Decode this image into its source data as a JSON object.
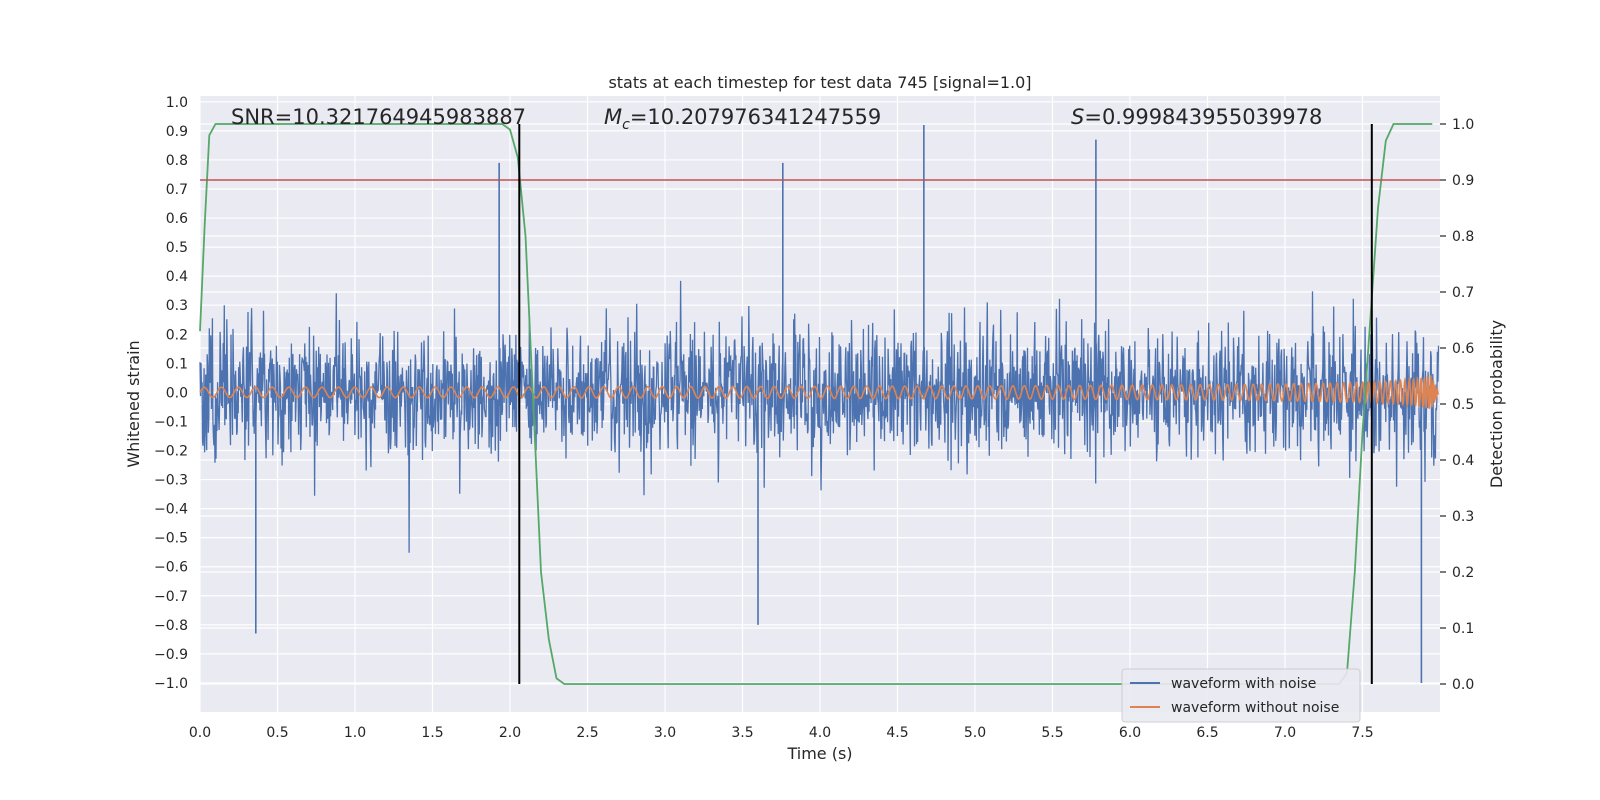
{
  "chart_data": {
    "type": "line",
    "title": "stats at each timestep for test data 745 [signal=1.0]",
    "xlabel": "Time (s)",
    "ylabel_left": "Whitened strain",
    "ylabel_right": "Detection probability",
    "xlim": [
      0.0,
      8.0
    ],
    "ylim_left": [
      -1.1,
      1.02
    ],
    "ylim_right": [
      -0.05,
      1.05
    ],
    "x_ticks": [
      "0.0",
      "0.5",
      "1.0",
      "1.5",
      "2.0",
      "2.5",
      "3.0",
      "3.5",
      "4.0",
      "4.5",
      "5.0",
      "5.5",
      "6.0",
      "6.5",
      "7.0",
      "7.5"
    ],
    "y_ticks_left": [
      "1.0",
      "0.9",
      "0.8",
      "0.7",
      "0.6",
      "0.5",
      "0.4",
      "0.3",
      "0.2",
      "0.1",
      "0.0",
      "−0.1",
      "−0.2",
      "−0.3",
      "−0.4",
      "−0.5",
      "−0.6",
      "−0.7",
      "−0.8",
      "−0.9",
      "−1.0"
    ],
    "y_ticks_right": [
      "1.0",
      "0.9",
      "0.8",
      "0.7",
      "0.6",
      "0.5",
      "0.4",
      "0.3",
      "0.2",
      "0.1",
      "0.0"
    ],
    "annotations": {
      "snr": "SNR=10.321764945983887",
      "mc_symbol": "M",
      "mc_sub": "c",
      "mc_value": "=10.207976341247559",
      "s_symbol": "S",
      "s_value": "=0.999843955039978"
    },
    "threshold_probability": 0.9,
    "vertical_lines_time": [
      2.06,
      7.56
    ],
    "series": [
      {
        "name": "waveform with noise",
        "color": "#4c72b0",
        "axis": "left",
        "description": "noisy whitened strain, amplitude roughly ±0.4 with spikes up to 0.92 and down to −1.0"
      },
      {
        "name": "waveform without noise",
        "color": "#dd8452",
        "axis": "left",
        "description": "chirp signal growing in amplitude towards 8 s"
      },
      {
        "name": "detection probability",
        "color": "#55a868",
        "axis": "right",
        "x": [
          0.0,
          0.03,
          0.06,
          0.1,
          0.15,
          1.9,
          1.95,
          2.0,
          2.05,
          2.1,
          2.15,
          2.2,
          2.25,
          2.3,
          2.35,
          2.4,
          7.3,
          7.35,
          7.4,
          7.45,
          7.5,
          7.55,
          7.6,
          7.65,
          7.7,
          7.75,
          7.8,
          7.95
        ],
        "values": [
          0.63,
          0.82,
          0.98,
          1.0,
          1.0,
          1.0,
          1.0,
          0.99,
          0.94,
          0.8,
          0.5,
          0.2,
          0.08,
          0.01,
          0.0,
          0.0,
          0.0,
          0.0,
          0.02,
          0.2,
          0.45,
          0.65,
          0.85,
          0.97,
          1.0,
          1.0,
          1.0,
          1.0
        ]
      },
      {
        "name": "threshold",
        "color": "#c44e52",
        "axis": "right",
        "values": [
          0.9,
          0.9
        ]
      }
    ],
    "legend": {
      "position": "lower-right",
      "entries": [
        "waveform with noise",
        "waveform without noise"
      ]
    }
  }
}
